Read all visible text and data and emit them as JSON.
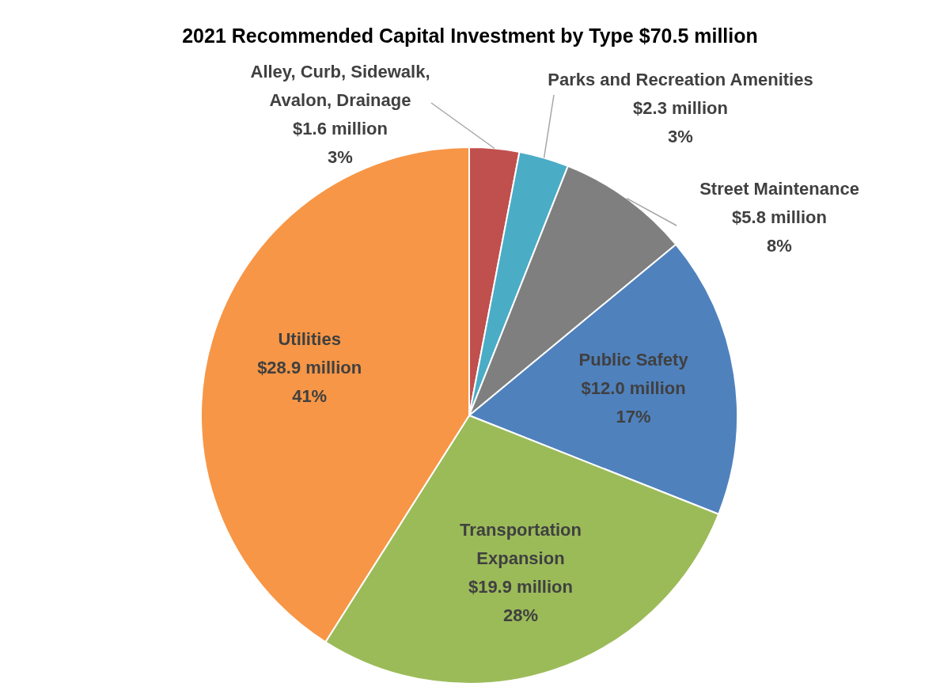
{
  "chart_data": {
    "type": "pie",
    "title": "2021 Recommended Capital Investment by Type $70.5 million",
    "categories": [
      "Alley, Curb, Sidewalk,\nAvalon, Drainage\n$1.6 million",
      "Parks and Recreation Amenities\n$2.3 million",
      "Street Maintenance\n$5.8 million",
      "Public Safety\n$12.0 million",
      "Transportation\nExpansion\n$19.9 million",
      "Utilities\n$28.9 million"
    ],
    "values": [
      3,
      3,
      8,
      17,
      28,
      41
    ],
    "colors": [
      "#c0504d",
      "#4bacc6",
      "#7f7f7f",
      "#4f81bd",
      "#9bbb59",
      "#f79646"
    ],
    "value_labels": [
      "3%",
      "3%",
      "8%",
      "17%",
      "28%",
      "41%"
    ],
    "legend": false
  }
}
